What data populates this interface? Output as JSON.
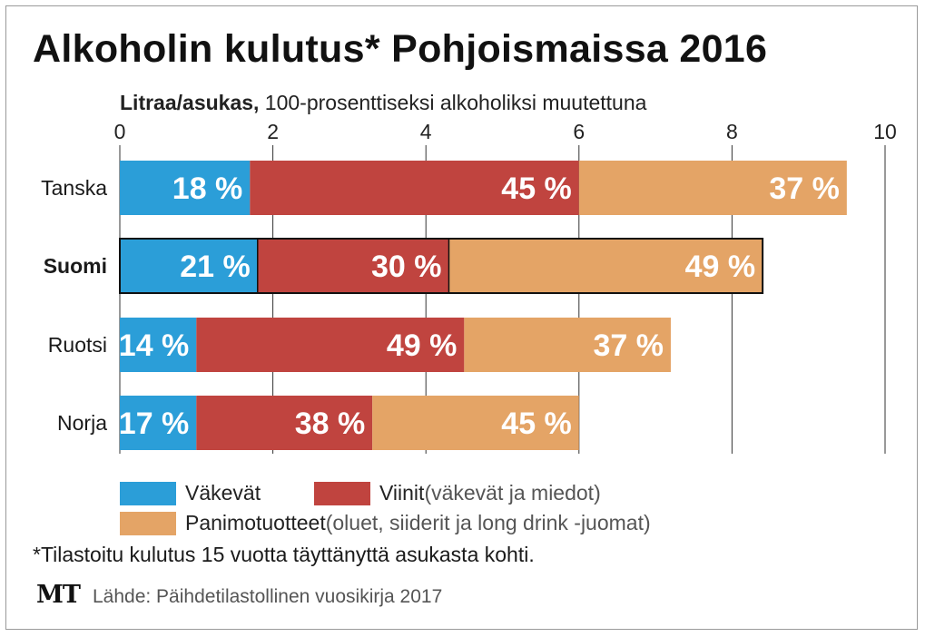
{
  "title": "Alkoholin kulutus* Pohjoismaissa 2016",
  "subtitle_bold": "Litraa/asukas,",
  "subtitle_rest": " 100-prosenttiseksi alkoholiksi muutettuna",
  "chart_data": {
    "type": "bar",
    "orientation": "horizontal",
    "stacked": true,
    "title": "Alkoholin kulutus* Pohjoismaissa 2016",
    "xlabel": "Litraa/asukas, 100-prosenttiseksi alkoholiksi muutettuna",
    "xlim": [
      0,
      10
    ],
    "xticks": [
      "0",
      "2",
      "4",
      "6",
      "8",
      "10"
    ],
    "grid": true,
    "categories": [
      "Tanska",
      "Suomi",
      "Ruotsi",
      "Norja"
    ],
    "highlighted_category": "Suomi",
    "totals": [
      9.5,
      8.4,
      7.2,
      6.0
    ],
    "series": [
      {
        "name": "Väkevät",
        "color": "#2b9ed8",
        "values": [
          1.7,
          1.8,
          1.0,
          1.0
        ],
        "labels": [
          "18 %",
          "21 %",
          "14 %",
          "17 %"
        ]
      },
      {
        "name": "Viinit",
        "color": "#c0443f",
        "values": [
          4.3,
          2.5,
          3.5,
          2.3
        ],
        "labels": [
          "45 %",
          "30 %",
          "49 %",
          "38 %"
        ]
      },
      {
        "name": "Panimotuotteet",
        "color": "#e4a466",
        "values": [
          3.5,
          4.1,
          2.7,
          2.7
        ],
        "labels": [
          "37 %",
          "49 %",
          "37 %",
          "45 %"
        ]
      }
    ],
    "legend_placement": "bottom"
  },
  "legend": [
    {
      "name": "Väkevät",
      "note": "",
      "color": "#2b9ed8"
    },
    {
      "name": "Viinit",
      "note": " (väkevät ja miedot)",
      "color": "#c0443f"
    },
    {
      "name": "Panimotuotteet",
      "note": " (oluet, siiderit ja long drink -juomat)",
      "color": "#e4a466"
    }
  ],
  "footnote": "*Tilastoitu kulutus 15 vuotta täyttänyttä asukasta kohti.",
  "logo": "MT",
  "source": "Lähde: Päihdetilastollinen vuosikirja 2017"
}
